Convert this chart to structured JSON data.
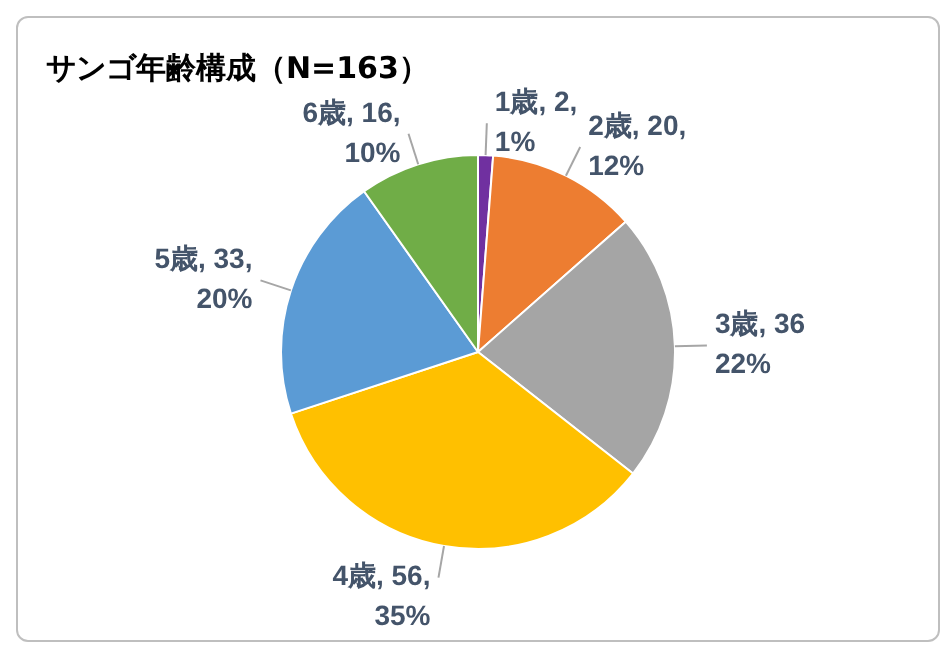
{
  "chart_data": {
    "type": "pie",
    "title": "サンゴ年齢構成（N=163）",
    "categories": [
      "1歳",
      "2歳",
      "3歳",
      "4歳",
      "5歳",
      "6歳"
    ],
    "values": [
      2,
      20,
      36,
      56,
      33,
      16
    ],
    "colors": [
      "#7030a0",
      "#ed7d31",
      "#a5a5a5",
      "#ffc000",
      "#5b9bd5",
      "#70ad47"
    ],
    "value_labels": [
      "2,\n1%",
      "20,\n12%",
      "36\n22%",
      "56,\n35%",
      "33,\n20%",
      "16,\n10%"
    ],
    "legend": false
  }
}
